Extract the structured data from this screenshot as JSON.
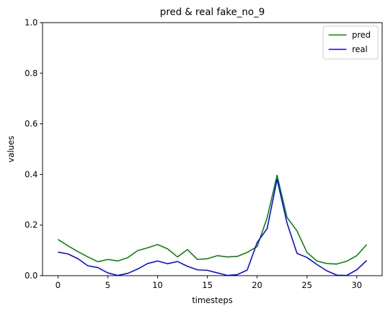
{
  "chart_data": {
    "type": "line",
    "title": "pred & real fake_no_9",
    "xlabel": "timesteps",
    "ylabel": "values",
    "xlim": [
      -1.55,
      32.55
    ],
    "ylim": [
      0,
      1
    ],
    "xticks": [
      0,
      5,
      10,
      15,
      20,
      25,
      30
    ],
    "yticks": [
      0.0,
      0.2,
      0.4,
      0.6,
      0.8,
      1.0
    ],
    "ytick_labels": [
      "0.0",
      "0.2",
      "0.4",
      "0.6",
      "0.8",
      "1.0"
    ],
    "grid": false,
    "legend_position": "top-right",
    "x": [
      0,
      1,
      2,
      3,
      4,
      5,
      6,
      7,
      8,
      9,
      10,
      11,
      12,
      13,
      14,
      15,
      16,
      17,
      18,
      19,
      20,
      21,
      22,
      23,
      24,
      25,
      26,
      27,
      28,
      29,
      30,
      31
    ],
    "series": [
      {
        "name": "pred",
        "color": "#008000",
        "values": [
          0.143,
          0.118,
          0.095,
          0.074,
          0.055,
          0.064,
          0.058,
          0.071,
          0.099,
          0.11,
          0.123,
          0.106,
          0.074,
          0.103,
          0.064,
          0.067,
          0.079,
          0.074,
          0.076,
          0.092,
          0.115,
          0.228,
          0.397,
          0.23,
          0.177,
          0.092,
          0.058,
          0.048,
          0.046,
          0.057,
          0.079,
          0.123
        ]
      },
      {
        "name": "real",
        "color": "#0000ff",
        "values": [
          0.093,
          0.086,
          0.067,
          0.039,
          0.032,
          0.011,
          0.001,
          0.009,
          0.026,
          0.048,
          0.058,
          0.047,
          0.056,
          0.037,
          0.023,
          0.021,
          0.011,
          0.001,
          0.004,
          0.022,
          0.131,
          0.186,
          0.381,
          0.208,
          0.088,
          0.072,
          0.044,
          0.019,
          0.002,
          0.001,
          0.023,
          0.06
        ]
      }
    ]
  }
}
